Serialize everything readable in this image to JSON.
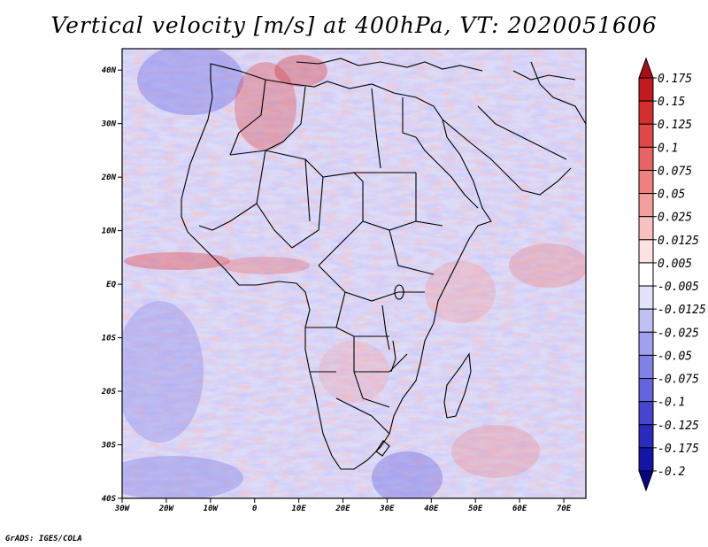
{
  "title": "Vertical velocity [m/s] at 400hPa, VT: 2020051606",
  "footer": "GrADS: IGES/COLA",
  "map": {
    "lon_labels": [
      "30W",
      "20W",
      "10W",
      "0",
      "10E",
      "20E",
      "30E",
      "40E",
      "50E",
      "60E",
      "70E"
    ],
    "lat_labels": [
      "40N",
      "30N",
      "20N",
      "10N",
      "EQ",
      "10S",
      "20S",
      "30S",
      "40S"
    ],
    "lon_range": [
      -30,
      75
    ],
    "lat_range": [
      -40,
      44
    ]
  },
  "colorbar": {
    "labels": [
      "0.175",
      "0.15",
      "0.125",
      "0.1",
      "0.075",
      "0.05",
      "0.025",
      "0.0125",
      "0.005",
      "-0.005",
      "-0.0125",
      "-0.025",
      "-0.05",
      "-0.075",
      "-0.1",
      "-0.125",
      "-0.175",
      "-0.2"
    ],
    "colors": [
      "#a50f15",
      "#c11b20",
      "#d42f2f",
      "#e04848",
      "#e86464",
      "#ef8080",
      "#f49e9e",
      "#f9c0c0",
      "#fde2e2",
      "#ffffff",
      "#e2e2fb",
      "#c0c0f5",
      "#a0a0ee",
      "#8282e6",
      "#6464dc",
      "#4646cf",
      "#2a2abf",
      "#1414a6",
      "#06067e"
    ]
  }
}
